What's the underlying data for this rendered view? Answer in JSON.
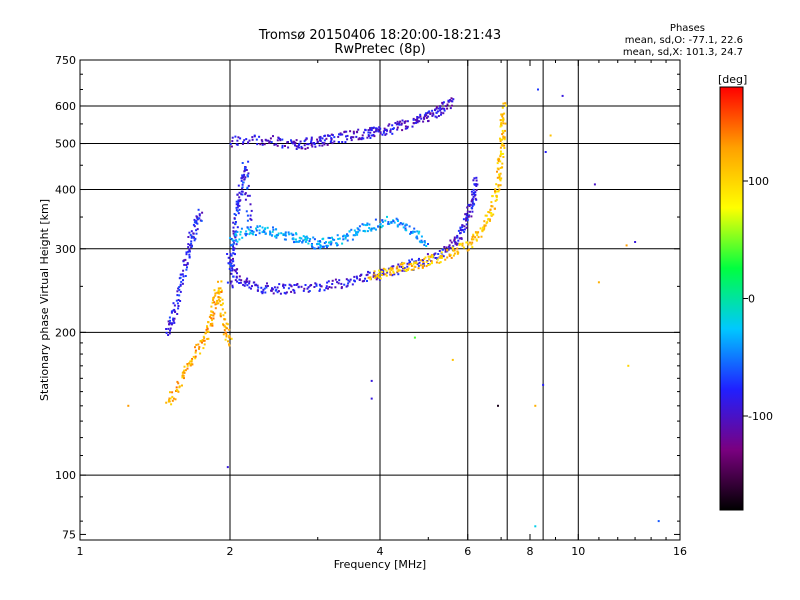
{
  "header": {
    "title": "Tromsø 20150406 18:20:00-18:21:43",
    "subtitle": "RwPretec (8p)",
    "stats_title": "Phases",
    "stats_o": "mean, sd,O: -77.1, 22.6",
    "stats_x": "mean, sd,X: 101.3, 24.7"
  },
  "chart_data": {
    "type": "scatter",
    "title": "Tromsø 20150406 18:20:00-18:21:43",
    "subtitle": "RwPretec (8p)",
    "xlabel": "Frequency [MHz]",
    "ylabel": "Stationary phase Virtual Height [km]",
    "xscale": "log",
    "yscale": "log",
    "xlim": [
      1,
      16
    ],
    "ylim": [
      73,
      750
    ],
    "xticks": [
      1,
      2,
      4,
      6,
      8,
      10,
      16
    ],
    "xtick_labels": [
      "1",
      "2",
      "4",
      "6",
      "8",
      "10",
      "16"
    ],
    "yticks": [
      75,
      100,
      200,
      300,
      400,
      500,
      600,
      750
    ],
    "ytick_labels": [
      "75",
      "100",
      "200",
      "300",
      "400",
      "500",
      "600",
      "750"
    ],
    "grid": true,
    "gridlines_x": [
      2,
      4,
      6,
      7.2,
      8.5,
      10
    ],
    "gridlines_y": [
      100,
      200,
      300,
      400,
      500,
      600
    ],
    "colorbar": {
      "label": "[deg]",
      "min": -180,
      "max": 180,
      "ticks": [
        100,
        0,
        -100
      ],
      "tick_labels": [
        "100",
        "0",
        "-100"
      ],
      "colors": [
        "#000000",
        "#7a0080",
        "#2020ff",
        "#00c8ff",
        "#00ff40",
        "#ffff00",
        "#ffa000",
        "#ff0000"
      ]
    },
    "traces": [
      {
        "x": [
          1.98,
          2.1,
          2.3,
          2.5,
          2.8,
          3.2,
          3.6,
          4.0,
          4.5,
          5.0,
          5.5,
          5.8,
          6.0,
          6.15,
          6.25
        ],
        "y": [
          290,
          255,
          248,
          247,
          248,
          252,
          258,
          265,
          275,
          285,
          300,
          320,
          350,
          380,
          420
        ],
        "phase": -90
      },
      {
        "x": [
          3.8,
          4.2,
          4.6,
          5.0,
          5.5,
          6.0,
          6.4,
          6.7,
          6.9,
          7.0,
          7.05,
          7.1
        ],
        "y": [
          262,
          268,
          276,
          283,
          292,
          305,
          325,
          360,
          410,
          470,
          530,
          600
        ],
        "phase": 110
      },
      {
        "x": [
          2.0,
          2.3,
          2.6,
          2.8,
          3.0,
          3.2,
          3.5,
          3.8,
          4.0,
          4.3,
          4.7,
          5.0,
          5.3,
          5.6
        ],
        "y": [
          505,
          510,
          500,
          498,
          505,
          510,
          520,
          525,
          530,
          540,
          555,
          570,
          590,
          610
        ],
        "phase": -95
      },
      {
        "x": [
          2.0,
          2.03,
          2.06,
          2.1,
          2.15,
          2.2
        ],
        "y": [
          250,
          300,
          350,
          400,
          450,
          330
        ],
        "phase": -80
      },
      {
        "x": [
          2.0,
          2.2,
          2.4,
          2.6,
          2.8,
          3.0,
          3.2,
          3.5,
          3.8,
          4.2,
          4.6,
          5.0
        ],
        "y": [
          310,
          330,
          325,
          320,
          315,
          305,
          310,
          320,
          335,
          345,
          330,
          310
        ],
        "phase": -40
      },
      {
        "x": [
          1.5,
          1.6,
          1.7,
          1.8,
          1.85,
          1.9,
          1.95,
          2.0
        ],
        "y": [
          140,
          160,
          180,
          200,
          220,
          250,
          210,
          190
        ],
        "phase": 120
      },
      {
        "x": [
          1.5,
          1.55,
          1.6,
          1.65,
          1.7,
          1.75
        ],
        "y": [
          200,
          220,
          260,
          300,
          330,
          360
        ],
        "phase": -85
      }
    ],
    "points": [
      {
        "x": 1.25,
        "y": 140,
        "phase": 130
      },
      {
        "x": 1.98,
        "y": 104,
        "phase": -90
      },
      {
        "x": 3.85,
        "y": 145,
        "phase": -90
      },
      {
        "x": 3.85,
        "y": 158,
        "phase": -90
      },
      {
        "x": 4.7,
        "y": 195,
        "phase": 40
      },
      {
        "x": 5.6,
        "y": 175,
        "phase": 110
      },
      {
        "x": 6.9,
        "y": 140,
        "phase": -170
      },
      {
        "x": 8.2,
        "y": 140,
        "phase": 120
      },
      {
        "x": 8.5,
        "y": 155,
        "phase": -80
      },
      {
        "x": 8.2,
        "y": 78,
        "phase": -20
      },
      {
        "x": 8.3,
        "y": 650,
        "phase": -70
      },
      {
        "x": 9.3,
        "y": 630,
        "phase": -90
      },
      {
        "x": 10.8,
        "y": 410,
        "phase": -100
      },
      {
        "x": 12.5,
        "y": 305,
        "phase": 130
      },
      {
        "x": 11.0,
        "y": 255,
        "phase": 120
      },
      {
        "x": 13.0,
        "y": 310,
        "phase": -90
      },
      {
        "x": 12.6,
        "y": 170,
        "phase": 100
      },
      {
        "x": 14.5,
        "y": 80,
        "phase": -60
      },
      {
        "x": 8.6,
        "y": 480,
        "phase": -80
      },
      {
        "x": 8.8,
        "y": 520,
        "phase": 110
      }
    ]
  }
}
